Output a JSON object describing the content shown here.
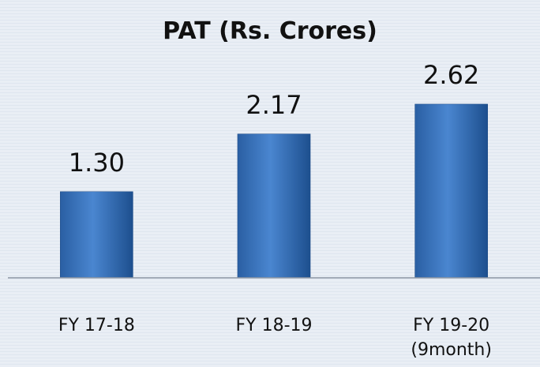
{
  "chart_data": {
    "type": "bar",
    "title": "PAT (Rs. Crores)",
    "categories": [
      "FY 17-18",
      "FY 18-19",
      "FY 19-20\n(9month)"
    ],
    "values": [
      1.3,
      2.17,
      2.62
    ],
    "value_labels": [
      "1.30",
      "2.17",
      "2.62"
    ],
    "color": "#2f6db5",
    "ylim": [
      0,
      3.25
    ]
  }
}
